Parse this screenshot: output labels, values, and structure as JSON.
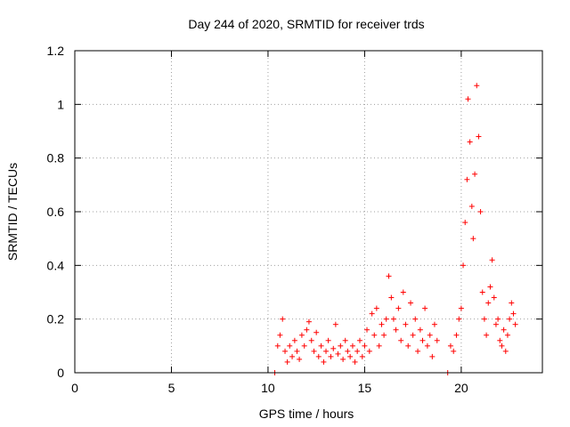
{
  "chart_data": {
    "type": "scatter",
    "title": "Day 244 of 2020, SRMTID for receiver trds",
    "xlabel": "GPS time / hours",
    "ylabel": "SRMTID / TECUs",
    "xlim": [
      0,
      24.2
    ],
    "ylim": [
      0,
      1.2
    ],
    "x_ticks": [
      0,
      5,
      10,
      15,
      20
    ],
    "x_tick_labels": [
      "0",
      "5",
      "10",
      "15",
      "20"
    ],
    "y_ticks": [
      0,
      0.2,
      0.4,
      0.6,
      0.8,
      1.0,
      1.2
    ],
    "y_tick_labels": [
      "0",
      "0.2",
      "0.4",
      "0.6",
      "0.8",
      "1",
      "1.2"
    ],
    "grid": true,
    "marker": "+",
    "color": "#ff0000",
    "series": [
      {
        "name": "SRMTID",
        "x": [
          10.35,
          10.5,
          10.62,
          10.75,
          10.88,
          11.0,
          11.12,
          11.25,
          11.38,
          11.5,
          11.62,
          11.75,
          11.88,
          12.0,
          12.12,
          12.25,
          12.38,
          12.5,
          12.62,
          12.75,
          12.88,
          13.0,
          13.12,
          13.25,
          13.38,
          13.5,
          13.62,
          13.75,
          13.88,
          14.0,
          14.12,
          14.25,
          14.38,
          14.5,
          14.62,
          14.75,
          14.88,
          15.0,
          15.12,
          15.25,
          15.38,
          15.5,
          15.62,
          15.75,
          15.88,
          16.0,
          16.12,
          16.25,
          16.38,
          16.5,
          16.62,
          16.75,
          16.88,
          17.0,
          17.12,
          17.25,
          17.38,
          17.5,
          17.62,
          17.75,
          17.88,
          18.0,
          18.12,
          18.25,
          18.38,
          18.5,
          18.62,
          18.75,
          19.3,
          19.45,
          19.6,
          19.75,
          19.88,
          20.0,
          20.1,
          20.2,
          20.3,
          20.35,
          20.45,
          20.55,
          20.62,
          20.7,
          20.8,
          20.9,
          21.0,
          21.1,
          21.2,
          21.3,
          21.4,
          21.5,
          21.6,
          21.7,
          21.8,
          21.9,
          22.0,
          22.1,
          22.2,
          22.3,
          22.4,
          22.5,
          22.6,
          22.7,
          22.8
        ],
        "y": [
          0.0,
          0.1,
          0.14,
          0.2,
          0.08,
          0.04,
          0.1,
          0.06,
          0.12,
          0.08,
          0.05,
          0.14,
          0.1,
          0.16,
          0.19,
          0.12,
          0.08,
          0.15,
          0.06,
          0.1,
          0.04,
          0.08,
          0.12,
          0.06,
          0.09,
          0.18,
          0.07,
          0.1,
          0.05,
          0.12,
          0.08,
          0.06,
          0.1,
          0.04,
          0.08,
          0.12,
          0.06,
          0.1,
          0.16,
          0.08,
          0.22,
          0.14,
          0.24,
          0.1,
          0.18,
          0.14,
          0.2,
          0.36,
          0.28,
          0.2,
          0.16,
          0.24,
          0.12,
          0.3,
          0.18,
          0.1,
          0.26,
          0.14,
          0.2,
          0.08,
          0.16,
          0.12,
          0.24,
          0.1,
          0.14,
          0.06,
          0.18,
          0.12,
          0.0,
          0.1,
          0.08,
          0.14,
          0.2,
          0.24,
          0.4,
          0.56,
          0.72,
          1.02,
          0.86,
          0.62,
          0.5,
          0.74,
          1.07,
          0.88,
          0.6,
          0.3,
          0.2,
          0.14,
          0.26,
          0.32,
          0.42,
          0.28,
          0.18,
          0.2,
          0.12,
          0.1,
          0.16,
          0.08,
          0.14,
          0.2,
          0.26,
          0.22,
          0.18
        ]
      }
    ]
  }
}
